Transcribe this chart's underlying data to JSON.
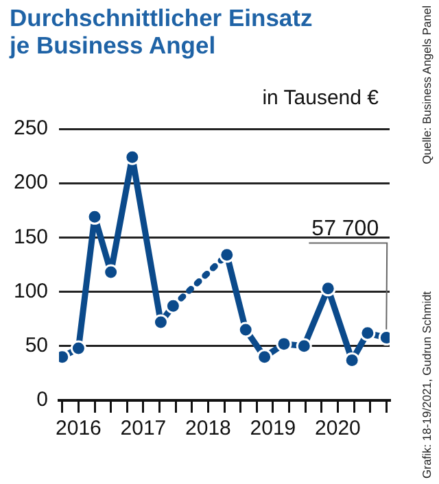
{
  "chart_data": {
    "type": "line",
    "title": "Durchschnittlicher Einsatz\nje Business Angel",
    "ylabel": "in Tausend €",
    "series": [
      {
        "color": "#0b4a8b",
        "marker": "circle",
        "line_style": "solid",
        "x": [
          2016.25,
          2016.5,
          2016.75,
          2017.0,
          2017.33,
          2017.77,
          2017.96,
          2018.4,
          2018.79,
          2019.08,
          2019.37,
          2019.67,
          2019.98,
          2020.35,
          2020.72,
          2020.96,
          2021.25
        ],
        "values": [
          40,
          48,
          169,
          118,
          224,
          72,
          87,
          null,
          134,
          65,
          40,
          52,
          50,
          103,
          37,
          62,
          57.7
        ]
      }
    ],
    "xlim": [
      2016.2,
      2021.3
    ],
    "xticks": [
      {
        "value": 2016.25,
        "label": null
      },
      {
        "value": 2016.5,
        "label": "2016"
      },
      {
        "value": 2016.75,
        "label": null
      },
      {
        "value": 2017,
        "label": null
      },
      {
        "value": 2017.25,
        "label": null
      },
      {
        "value": 2017.5,
        "label": "2017"
      },
      {
        "value": 2017.75,
        "label": null
      },
      {
        "value": 2018,
        "label": null
      },
      {
        "value": 2018.25,
        "label": null
      },
      {
        "value": 2018.5,
        "label": "2018"
      },
      {
        "value": 2018.75,
        "label": null
      },
      {
        "value": 2019,
        "label": null
      },
      {
        "value": 2019.25,
        "label": null
      },
      {
        "value": 2019.5,
        "label": "2019"
      },
      {
        "value": 2019.75,
        "label": null
      },
      {
        "value": 2020,
        "label": null
      },
      {
        "value": 2020.25,
        "label": null
      },
      {
        "value": 2020.5,
        "label": "2020"
      },
      {
        "value": 2020.75,
        "label": null
      },
      {
        "value": 2021,
        "label": null
      },
      {
        "value": 2021.25,
        "label": null
      }
    ],
    "ylim": [
      0,
      250
    ],
    "yticks": [
      0,
      50,
      100,
      150,
      200,
      250
    ],
    "grid": "y",
    "legend": false,
    "annotations": [
      {
        "text": "57 700",
        "x": 2021.25,
        "y": 57.7
      },
      "Grafik: 18-19/2021, Gudrun Schmidt",
      "Quelle: Business Angels Panel"
    ]
  }
}
